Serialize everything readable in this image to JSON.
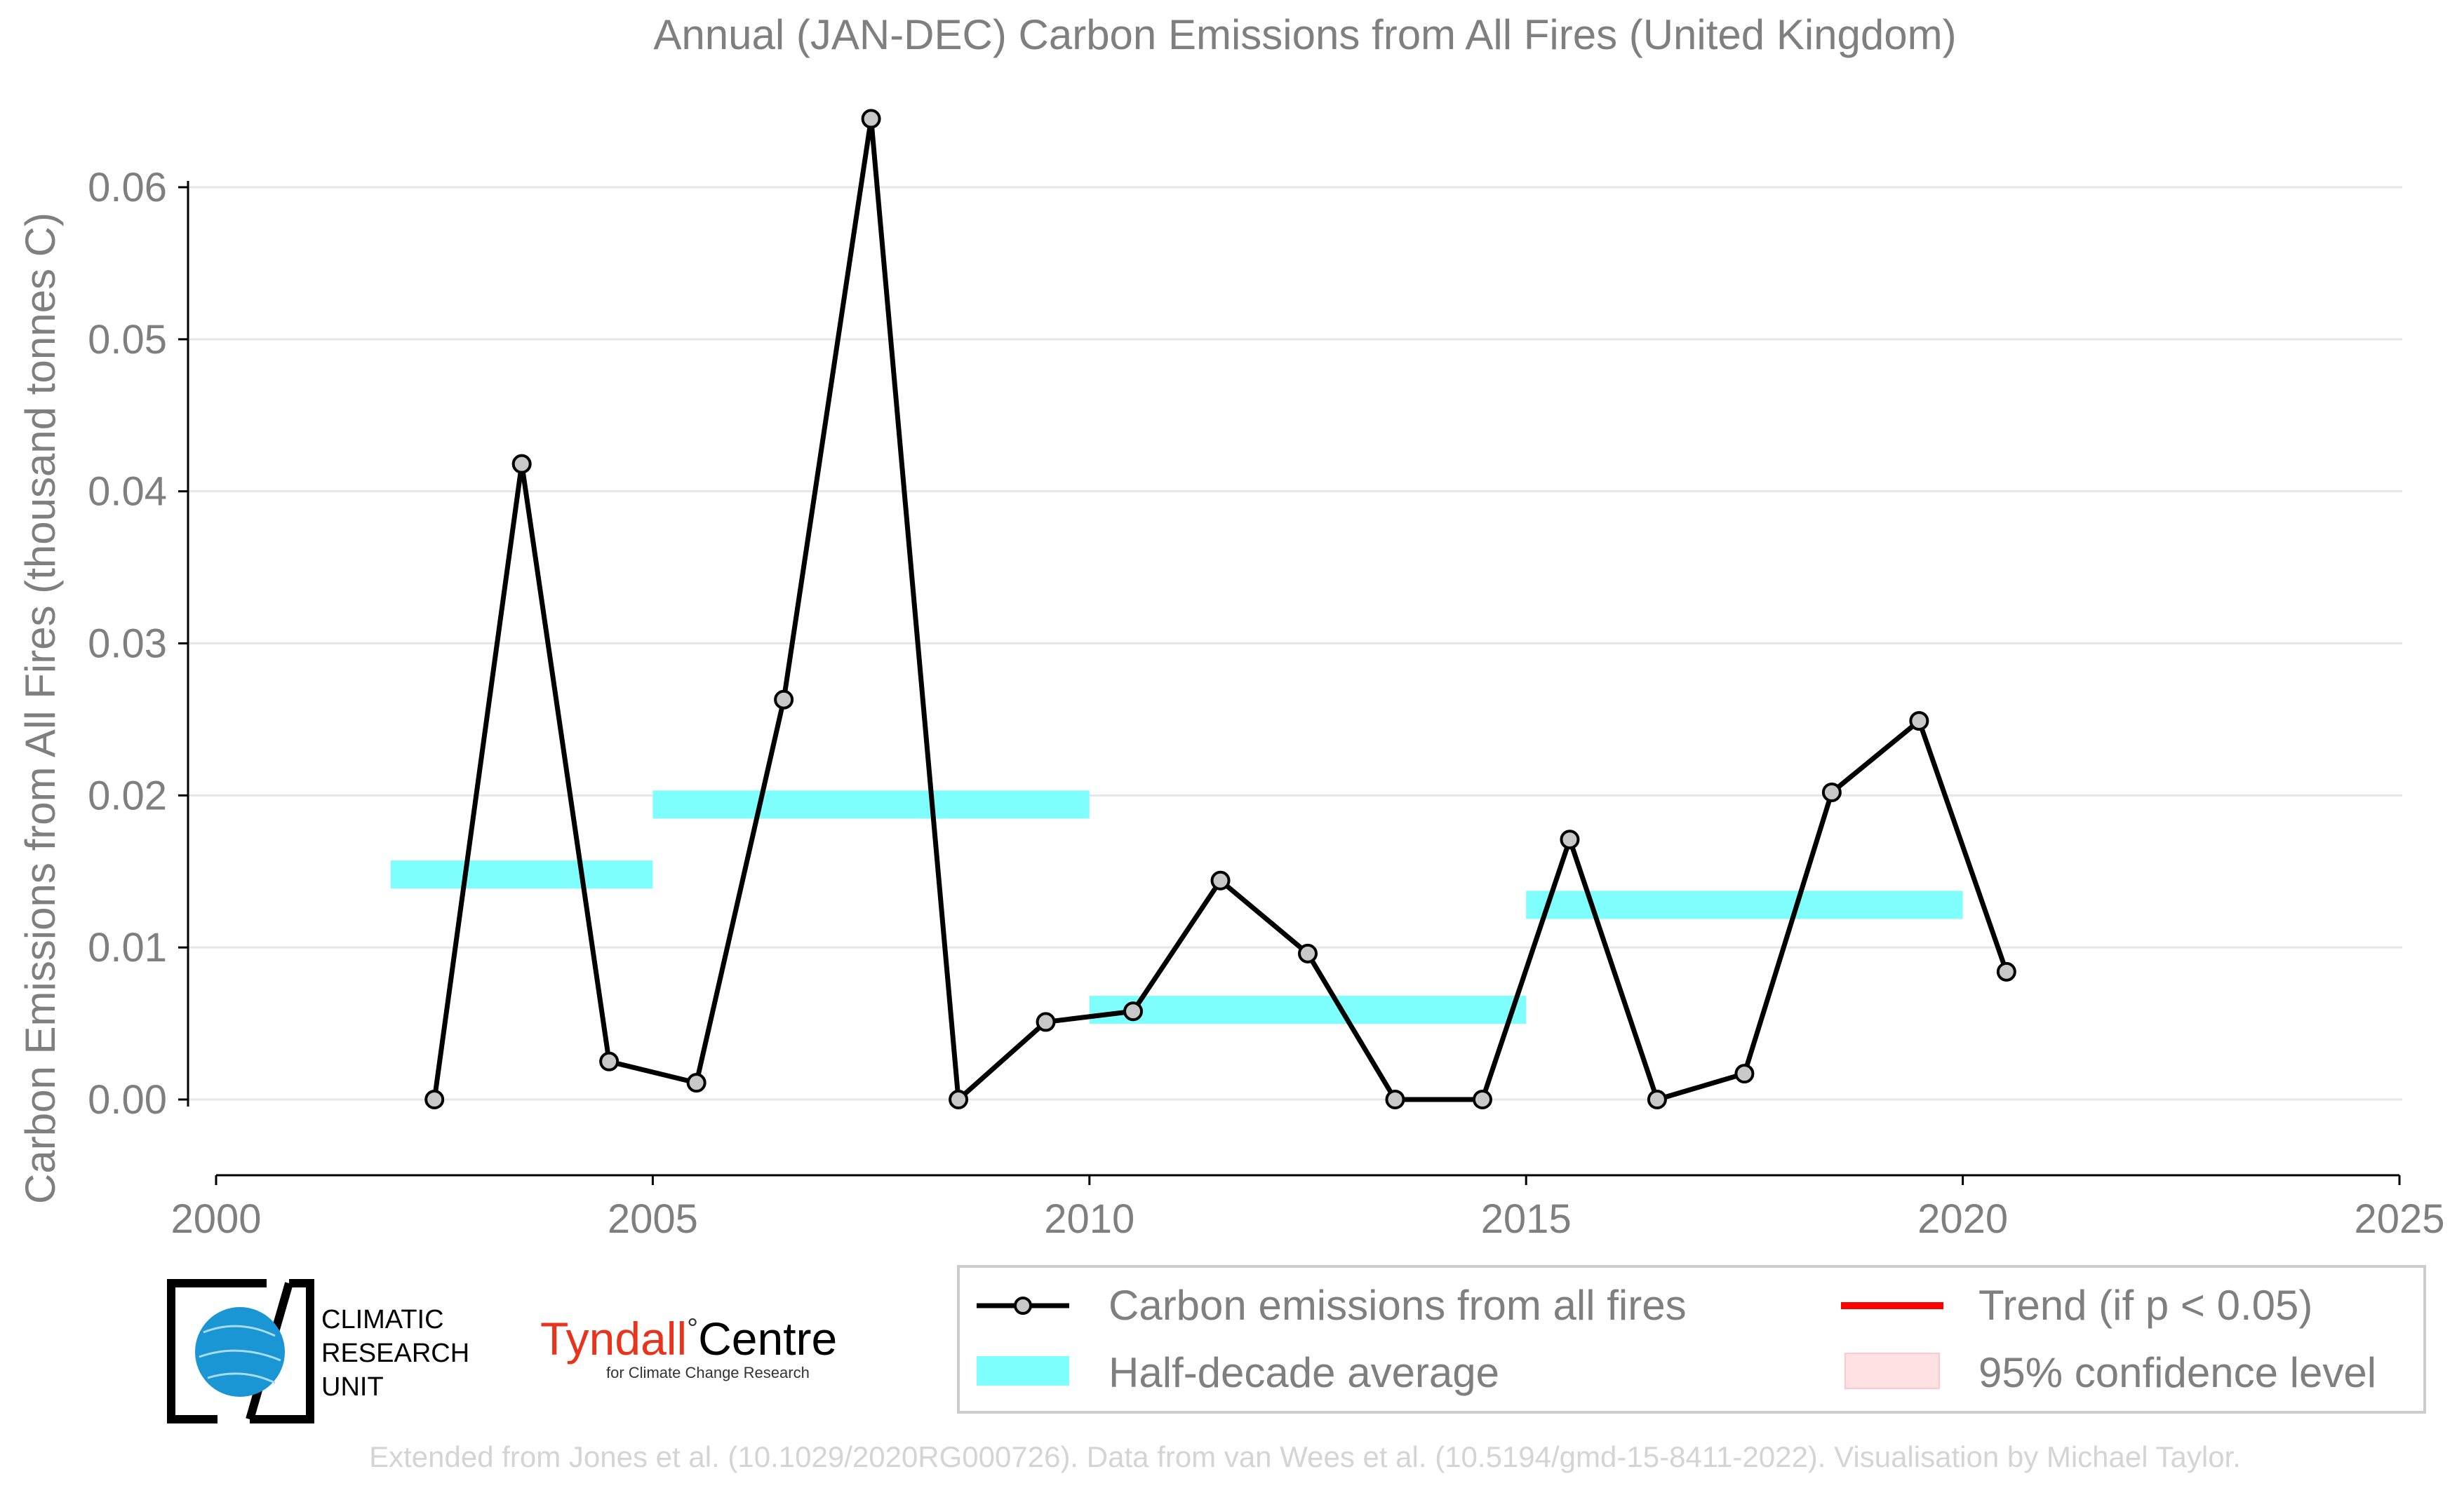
{
  "chart_data": {
    "type": "line",
    "title": "Annual (JAN-DEC) Carbon Emissions from All Fires (United Kingdom)",
    "ylabel": "Carbon Emissions from All Fires (thousand tonnes C)",
    "xlabel": "",
    "xlim": [
      2000,
      2025
    ],
    "ylim": [
      -0.005,
      0.067
    ],
    "x_ticks": [
      2000,
      2005,
      2010,
      2015,
      2020,
      2025
    ],
    "x_tick_labels": [
      "2000",
      "2005",
      "2010",
      "2015",
      "2020",
      "2025"
    ],
    "y_ticks": [
      0.0,
      0.01,
      0.02,
      0.03,
      0.04,
      0.05,
      0.06
    ],
    "y_tick_labels": [
      "0.00",
      "0.01",
      "0.02",
      "0.03",
      "0.04",
      "0.05",
      "0.06"
    ],
    "grid": "horizontal",
    "series": [
      {
        "name": "Carbon emissions from all fires",
        "color": "#000000",
        "marker_color": "#c8c8c8",
        "x": [
          2002.5,
          2003.5,
          2004.5,
          2005.5,
          2006.5,
          2007.5,
          2008.5,
          2009.5,
          2010.5,
          2011.5,
          2012.5,
          2013.5,
          2014.5,
          2015.5,
          2016.5,
          2017.5,
          2018.5,
          2019.5,
          2020.5
        ],
        "values": [
          0.0,
          0.0418,
          0.0025,
          0.0011,
          0.0263,
          0.0645,
          0.0,
          0.0051,
          0.0058,
          0.0144,
          0.0096,
          0.0,
          0.0,
          0.0171,
          0.0,
          0.0017,
          0.0202,
          0.0249,
          0.0084
        ]
      },
      {
        "name": "Half-decade average",
        "color": "#7ffefe",
        "bands": [
          {
            "x0": 2002,
            "x1": 2005,
            "y": 0.0148
          },
          {
            "x0": 2005,
            "x1": 2010,
            "y": 0.0194
          },
          {
            "x0": 2010,
            "x1": 2015,
            "y": 0.0059
          },
          {
            "x0": 2015,
            "x1": 2020,
            "y": 0.0128
          }
        ]
      }
    ],
    "legend": {
      "position": "bottom-right",
      "items": [
        {
          "label": "Carbon emissions from all fires",
          "kind": "line-marker",
          "color": "#000000"
        },
        {
          "label": "Trend (if p < 0.05)",
          "kind": "line",
          "color": "#ff0000"
        },
        {
          "label": "Half-decade average",
          "kind": "band",
          "color": "#7ffefe"
        },
        {
          "label": "95% confidence level",
          "kind": "patch",
          "color": "#ffe0e3"
        }
      ]
    }
  },
  "logos": {
    "cru_lines": [
      "CLIMATIC",
      "RESEARCH",
      "UNIT"
    ],
    "tyndall_main": "Tyndall",
    "tyndall_degree": "°",
    "tyndall_centre": "Centre",
    "tyndall_sub": "for Climate Change Research",
    "tyndall_color": "#e8341c"
  },
  "footer": {
    "credit": "Extended from Jones et al. (10.1029/2020RG000726). Data from van Wees et al. (10.5194/gmd-15-8411-2022). Visualisation by Michael Taylor."
  }
}
